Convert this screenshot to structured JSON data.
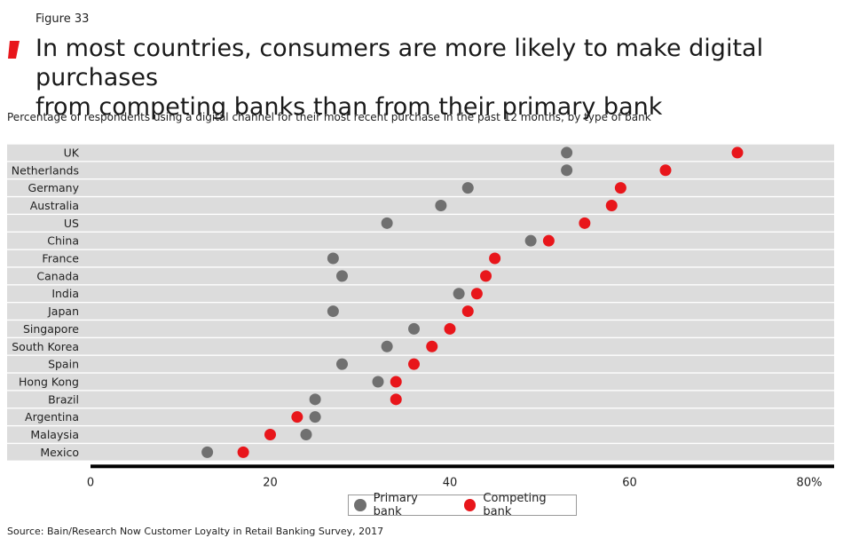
{
  "figure_label": "Figure 33",
  "title_line1": "In most countries, consumers are more likely to make digital purchases",
  "title_line2": "from competing banks than from their primary bank",
  "subtitle": "Percentage of respondents using a digital channel for their most recent purchase in the past 12 months, by type of bank",
  "source": "Source: Bain/Research Now Customer Loyalty in Retail Banking Survey, 2017",
  "colors": {
    "primary": "#707070",
    "competing": "#e8161b",
    "accent": "#e8161b",
    "band": "#dcdcdc",
    "axis": "#000000"
  },
  "legend": {
    "primary_label": "Primary bank",
    "competing_label": "Competing bank"
  },
  "chart_data": {
    "type": "scatter",
    "title": "In most countries, consumers are more likely to make digital purchases from competing banks than from their primary bank",
    "xlabel": "",
    "ylabel": "",
    "xlim": [
      0,
      80
    ],
    "x_ticks": [
      "0",
      "20",
      "40",
      "60",
      "80%"
    ],
    "x_tick_values": [
      0,
      20,
      40,
      60,
      80
    ],
    "categories": [
      "UK",
      "Netherlands",
      "Germany",
      "Australia",
      "US",
      "China",
      "France",
      "Canada",
      "India",
      "Japan",
      "Singapore",
      "South Korea",
      "Spain",
      "Hong Kong",
      "Brazil",
      "Argentina",
      "Malaysia",
      "Mexico"
    ],
    "series": [
      {
        "name": "Primary bank",
        "values": [
          53,
          53,
          42,
          39,
          33,
          49,
          27,
          28,
          41,
          27,
          36,
          33,
          28,
          32,
          25,
          25,
          24,
          13
        ]
      },
      {
        "name": "Competing bank",
        "values": [
          72,
          64,
          59,
          58,
          55,
          51,
          45,
          44,
          43,
          42,
          40,
          38,
          36,
          34,
          34,
          23,
          20,
          17
        ]
      }
    ],
    "legend_position": "bottom-center"
  }
}
